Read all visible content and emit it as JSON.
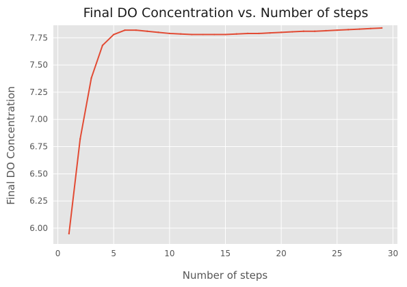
{
  "chart_data": {
    "type": "line",
    "title": "Final DO Concentration vs. Number of steps",
    "xlabel": "Number of steps",
    "ylabel": "Final DO Concentration",
    "xlim": [
      -0.4,
      30.4
    ],
    "ylim": [
      5.855,
      7.865
    ],
    "x_ticks": [
      0,
      5,
      10,
      15,
      20,
      25,
      30
    ],
    "y_ticks": [
      6.0,
      6.25,
      6.5,
      6.75,
      7.0,
      7.25,
      7.5,
      7.75
    ],
    "x_tick_labels": [
      "0",
      "5",
      "10",
      "15",
      "20",
      "25",
      "30"
    ],
    "y_tick_labels": [
      "6.00",
      "6.25",
      "6.50",
      "6.75",
      "7.00",
      "7.25",
      "7.50",
      "7.75"
    ],
    "grid": true,
    "colors": {
      "line": "#E24A33",
      "plot_bg": "#E5E5E5",
      "grid": "#FFFFFF"
    },
    "series": [
      {
        "x": [
          1,
          2,
          3,
          4,
          5,
          6,
          7,
          8,
          9,
          10,
          11,
          12,
          13,
          14,
          15,
          16,
          17,
          18,
          19,
          20,
          21,
          22,
          23,
          24,
          25,
          26,
          27,
          28,
          29
        ],
        "y": [
          5.95,
          6.82,
          7.38,
          7.68,
          7.78,
          7.82,
          7.82,
          7.81,
          7.8,
          7.79,
          7.785,
          7.78,
          7.78,
          7.78,
          7.78,
          7.785,
          7.79,
          7.79,
          7.795,
          7.8,
          7.805,
          7.81,
          7.81,
          7.815,
          7.82,
          7.825,
          7.83,
          7.835,
          7.84
        ]
      }
    ]
  }
}
